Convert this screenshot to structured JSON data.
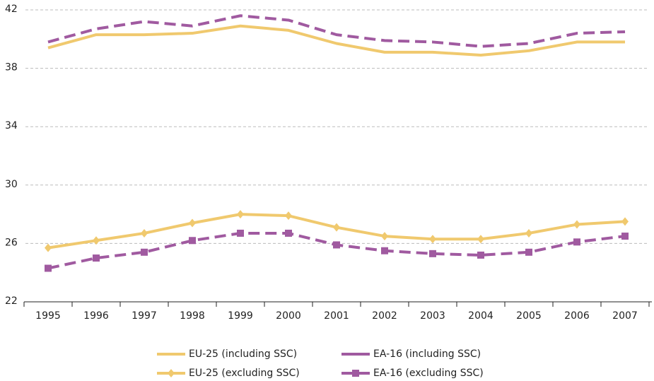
{
  "chart_data": {
    "type": "line",
    "categories": [
      "1995",
      "1996",
      "1997",
      "1998",
      "1999",
      "2000",
      "2001",
      "2002",
      "2003",
      "2004",
      "2005",
      "2006",
      "2007"
    ],
    "series": [
      {
        "name": "EU-25 (including SSC)",
        "color": "#f0c96e",
        "dashed": false,
        "marker": null,
        "values": [
          39.4,
          40.3,
          40.3,
          40.4,
          40.9,
          40.6,
          39.7,
          39.1,
          39.1,
          38.9,
          39.2,
          39.8,
          39.8
        ]
      },
      {
        "name": "EA-16 (including SSC)",
        "color": "#a05aa0",
        "dashed": true,
        "marker": null,
        "values": [
          39.8,
          40.7,
          41.2,
          40.9,
          41.6,
          41.3,
          40.3,
          39.9,
          39.8,
          39.5,
          39.7,
          40.4,
          40.5
        ]
      },
      {
        "name": "EU-25 (excluding SSC)",
        "color": "#f0c96e",
        "dashed": false,
        "marker": "diamond",
        "values": [
          25.7,
          26.2,
          26.7,
          27.4,
          28.0,
          27.9,
          27.1,
          26.5,
          26.3,
          26.3,
          26.7,
          27.3,
          27.5
        ]
      },
      {
        "name": "EA-16 (excluding SSC)",
        "color": "#a05aa0",
        "dashed": true,
        "marker": "square",
        "values": [
          24.3,
          25.0,
          25.4,
          26.2,
          26.7,
          26.7,
          25.9,
          25.5,
          25.3,
          25.2,
          25.4,
          26.1,
          26.5
        ]
      }
    ],
    "ylim": [
      22,
      42
    ],
    "yticks": [
      22,
      26,
      30,
      34,
      38,
      42
    ],
    "grid": true
  }
}
